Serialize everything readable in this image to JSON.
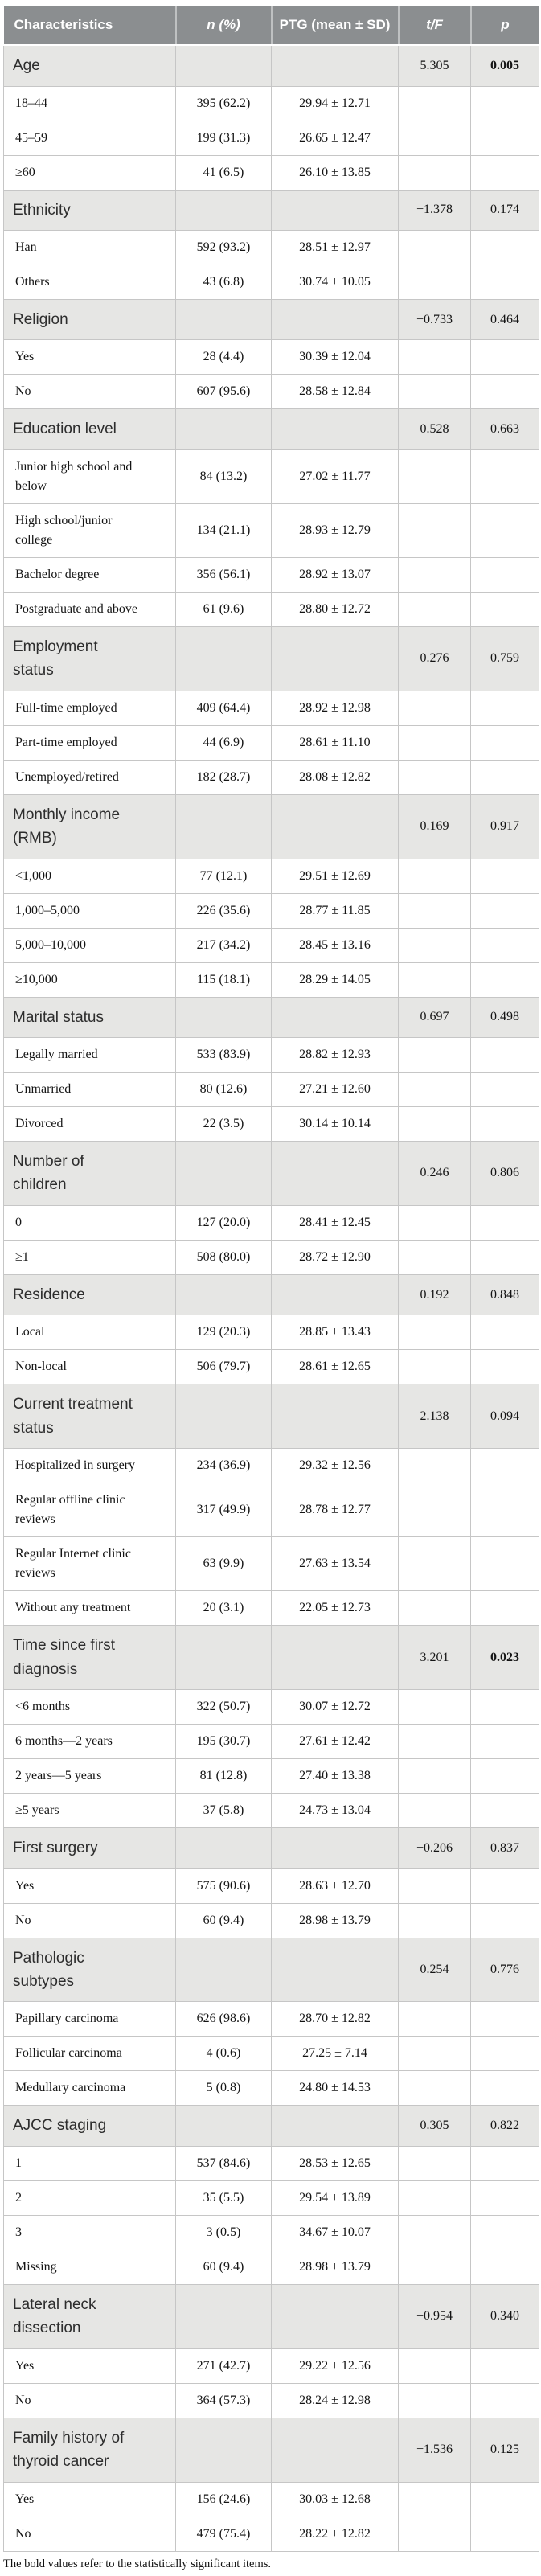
{
  "table": {
    "columns": [
      "Characteristics",
      "n (%)",
      "PTG (mean ± SD)",
      "t/F",
      "p"
    ],
    "footnote": "The bold values refer to the statistically significant items.",
    "colors": {
      "header_bg": "#8b8e90",
      "header_text": "#ffffff",
      "category_row_bg": "#e6e6e4",
      "item_row_bg": "#ffffff",
      "border": "#c6c6c6"
    },
    "rows": [
      {
        "type": "category",
        "label": "Age",
        "tf": "5.305",
        "p": "0.005",
        "p_bold": true
      },
      {
        "type": "item",
        "label": "18–44",
        "n": "395 (62.2)",
        "ptg": "29.94 ± 12.71"
      },
      {
        "type": "item",
        "label": "45–59",
        "n": "199 (31.3)",
        "ptg": "26.65 ± 12.47"
      },
      {
        "type": "item",
        "label": "≥60",
        "n": "41 (6.5)",
        "ptg": "26.10 ± 13.85"
      },
      {
        "type": "category",
        "label": "Ethnicity",
        "tf": "−1.378",
        "p": "0.174",
        "p_bold": false
      },
      {
        "type": "item",
        "label": "Han",
        "n": "592 (93.2)",
        "ptg": "28.51 ± 12.97"
      },
      {
        "type": "item",
        "label": "Others",
        "n": "43 (6.8)",
        "ptg": "30.74 ± 10.05"
      },
      {
        "type": "category",
        "label": "Religion",
        "tf": "−0.733",
        "p": "0.464",
        "p_bold": false
      },
      {
        "type": "item",
        "label": "Yes",
        "n": "28 (4.4)",
        "ptg": "30.39 ± 12.04"
      },
      {
        "type": "item",
        "label": "No",
        "n": "607 (95.6)",
        "ptg": "28.58 ± 12.84"
      },
      {
        "type": "category",
        "label": "Education level",
        "tf": "0.528",
        "p": "0.663",
        "p_bold": false
      },
      {
        "type": "item",
        "label": "Junior high school and below",
        "n": "84 (13.2)",
        "ptg": "27.02 ± 11.77"
      },
      {
        "type": "item",
        "label": "High school/junior college",
        "n": "134 (21.1)",
        "ptg": "28.93 ± 12.79"
      },
      {
        "type": "item",
        "label": "Bachelor degree",
        "n": "356 (56.1)",
        "ptg": "28.92 ± 13.07"
      },
      {
        "type": "item",
        "label": "Postgraduate and above",
        "n": "61 (9.6)",
        "ptg": "28.80 ± 12.72"
      },
      {
        "type": "category",
        "label": "Employment status",
        "tf": "0.276",
        "p": "0.759",
        "p_bold": false
      },
      {
        "type": "item",
        "label": "Full-time employed",
        "n": "409 (64.4)",
        "ptg": "28.92 ± 12.98"
      },
      {
        "type": "item",
        "label": "Part-time employed",
        "n": "44 (6.9)",
        "ptg": "28.61 ± 11.10"
      },
      {
        "type": "item",
        "label": "Unemployed/retired",
        "n": "182 (28.7)",
        "ptg": "28.08 ± 12.82"
      },
      {
        "type": "category",
        "label": "Monthly income (RMB)",
        "tf": "0.169",
        "p": "0.917",
        "p_bold": false
      },
      {
        "type": "item",
        "label": "<1,000",
        "n": "77 (12.1)",
        "ptg": "29.51 ± 12.69"
      },
      {
        "type": "item",
        "label": "1,000–5,000",
        "n": "226 (35.6)",
        "ptg": "28.77 ± 11.85"
      },
      {
        "type": "item",
        "label": "5,000–10,000",
        "n": "217 (34.2)",
        "ptg": "28.45 ± 13.16"
      },
      {
        "type": "item",
        "label": "≥10,000",
        "n": "115 (18.1)",
        "ptg": "28.29 ± 14.05"
      },
      {
        "type": "category",
        "label": "Marital status",
        "tf": "0.697",
        "p": "0.498",
        "p_bold": false
      },
      {
        "type": "item",
        "label": "Legally married",
        "n": "533 (83.9)",
        "ptg": "28.82 ± 12.93"
      },
      {
        "type": "item",
        "label": "Unmarried",
        "n": "80 (12.6)",
        "ptg": "27.21 ± 12.60"
      },
      {
        "type": "item",
        "label": "Divorced",
        "n": "22 (3.5)",
        "ptg": "30.14 ± 10.14"
      },
      {
        "type": "category",
        "label": "Number of children",
        "tf": "0.246",
        "p": "0.806",
        "p_bold": false
      },
      {
        "type": "item",
        "label": "0",
        "n": "127 (20.0)",
        "ptg": "28.41 ± 12.45"
      },
      {
        "type": "item",
        "label": "≥1",
        "n": "508 (80.0)",
        "ptg": "28.72 ± 12.90"
      },
      {
        "type": "category",
        "label": "Residence",
        "tf": "0.192",
        "p": "0.848",
        "p_bold": false
      },
      {
        "type": "item",
        "label": "Local",
        "n": "129 (20.3)",
        "ptg": "28.85 ± 13.43"
      },
      {
        "type": "item",
        "label": "Non-local",
        "n": "506 (79.7)",
        "ptg": "28.61 ± 12.65"
      },
      {
        "type": "category",
        "label": "Current treatment status",
        "tf": "2.138",
        "p": "0.094",
        "p_bold": false
      },
      {
        "type": "item",
        "label": "Hospitalized in surgery",
        "n": "234 (36.9)",
        "ptg": "29.32 ± 12.56"
      },
      {
        "type": "item",
        "label": "Regular offline clinic reviews",
        "n": "317 (49.9)",
        "ptg": "28.78 ± 12.77"
      },
      {
        "type": "item",
        "label": "Regular Internet clinic reviews",
        "n": "63 (9.9)",
        "ptg": "27.63 ± 13.54"
      },
      {
        "type": "item",
        "label": "Without any treatment",
        "n": "20 (3.1)",
        "ptg": "22.05 ± 12.73"
      },
      {
        "type": "category",
        "label": "Time since first diagnosis",
        "tf": "3.201",
        "p": "0.023",
        "p_bold": true
      },
      {
        "type": "item",
        "label": "<6 months",
        "n": "322 (50.7)",
        "ptg": "30.07 ± 12.72"
      },
      {
        "type": "item",
        "label": "6 months—2 years",
        "n": "195 (30.7)",
        "ptg": "27.61 ± 12.42"
      },
      {
        "type": "item",
        "label": "2 years—5 years",
        "n": "81 (12.8)",
        "ptg": "27.40 ± 13.38"
      },
      {
        "type": "item",
        "label": "≥5 years",
        "n": "37 (5.8)",
        "ptg": "24.73 ± 13.04"
      },
      {
        "type": "category",
        "label": "First surgery",
        "tf": "−0.206",
        "p": "0.837",
        "p_bold": false
      },
      {
        "type": "item",
        "label": "Yes",
        "n": "575 (90.6)",
        "ptg": "28.63 ± 12.70"
      },
      {
        "type": "item",
        "label": "No",
        "n": "60 (9.4)",
        "ptg": "28.98 ± 13.79"
      },
      {
        "type": "category",
        "label": "Pathologic subtypes",
        "tf": "0.254",
        "p": "0.776",
        "p_bold": false
      },
      {
        "type": "item",
        "label": "Papillary carcinoma",
        "n": "626 (98.6)",
        "ptg": "28.70 ± 12.82"
      },
      {
        "type": "item",
        "label": "Follicular carcinoma",
        "n": "4 (0.6)",
        "ptg": "27.25 ± 7.14"
      },
      {
        "type": "item",
        "label": "Medullary carcinoma",
        "n": "5 (0.8)",
        "ptg": "24.80 ± 14.53"
      },
      {
        "type": "category",
        "label": "AJCC staging",
        "tf": "0.305",
        "p": "0.822",
        "p_bold": false
      },
      {
        "type": "item",
        "label": "1",
        "n": "537 (84.6)",
        "ptg": "28.53 ± 12.65"
      },
      {
        "type": "item",
        "label": "2",
        "n": "35 (5.5)",
        "ptg": "29.54 ± 13.89"
      },
      {
        "type": "item",
        "label": "3",
        "n": "3 (0.5)",
        "ptg": "34.67 ± 10.07"
      },
      {
        "type": "item",
        "label": "Missing",
        "n": "60 (9.4)",
        "ptg": "28.98 ± 13.79"
      },
      {
        "type": "category",
        "label": "Lateral neck dissection",
        "tf": "−0.954",
        "p": "0.340",
        "p_bold": false
      },
      {
        "type": "item",
        "label": "Yes",
        "n": "271 (42.7)",
        "ptg": "29.22 ± 12.56"
      },
      {
        "type": "item",
        "label": "No",
        "n": "364 (57.3)",
        "ptg": "28.24 ± 12.98"
      },
      {
        "type": "category",
        "label": "Family history of thyroid cancer",
        "tf": "−1.536",
        "p": "0.125",
        "p_bold": false
      },
      {
        "type": "item",
        "label": "Yes",
        "n": "156 (24.6)",
        "ptg": "30.03 ± 12.68"
      },
      {
        "type": "item",
        "label": "No",
        "n": "479 (75.4)",
        "ptg": "28.22 ± 12.82"
      }
    ]
  }
}
